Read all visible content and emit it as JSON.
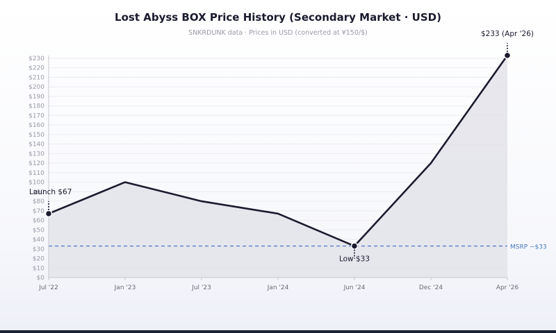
{
  "chart_data": {
    "type": "area",
    "title": "Lost Abyss BOX Price History (Secondary Market · USD)",
    "subtitle": "SNKRDUNK data · Prices in USD (converted at ¥150/$)",
    "categories": [
      "Jul '22",
      "Jan '23",
      "Jul '23",
      "Jan '24",
      "Jun '24",
      "Dec '24",
      "Apr '26"
    ],
    "series": [
      {
        "values": [
          67,
          100,
          80,
          67,
          33,
          120,
          233
        ]
      }
    ],
    "yticks": [
      "$0",
      "$10",
      "$20",
      "$30",
      "$40",
      "$50",
      "$60",
      "$70",
      "$80",
      "$90",
      "$100",
      "$110",
      "$120",
      "$130",
      "$140",
      "$150",
      "$160",
      "$170",
      "$180",
      "$190",
      "$200",
      "$210",
      "$220",
      "$230"
    ],
    "ylim": [
      0,
      230
    ],
    "grid": true,
    "reference_line": {
      "label": "MSRP ~$33",
      "value": 33
    },
    "annotations": [
      {
        "index": 0,
        "label": "Launch $67",
        "position": "above"
      },
      {
        "index": 4,
        "label": "Low $33",
        "position": "below"
      },
      {
        "index": 6,
        "label": "$233 (Apr '26)",
        "position": "above"
      }
    ],
    "colors": {
      "line": "#1b1a2e",
      "area": "#e3e3ea",
      "reference": "#4a78c0",
      "grid": "#ececf1"
    }
  }
}
